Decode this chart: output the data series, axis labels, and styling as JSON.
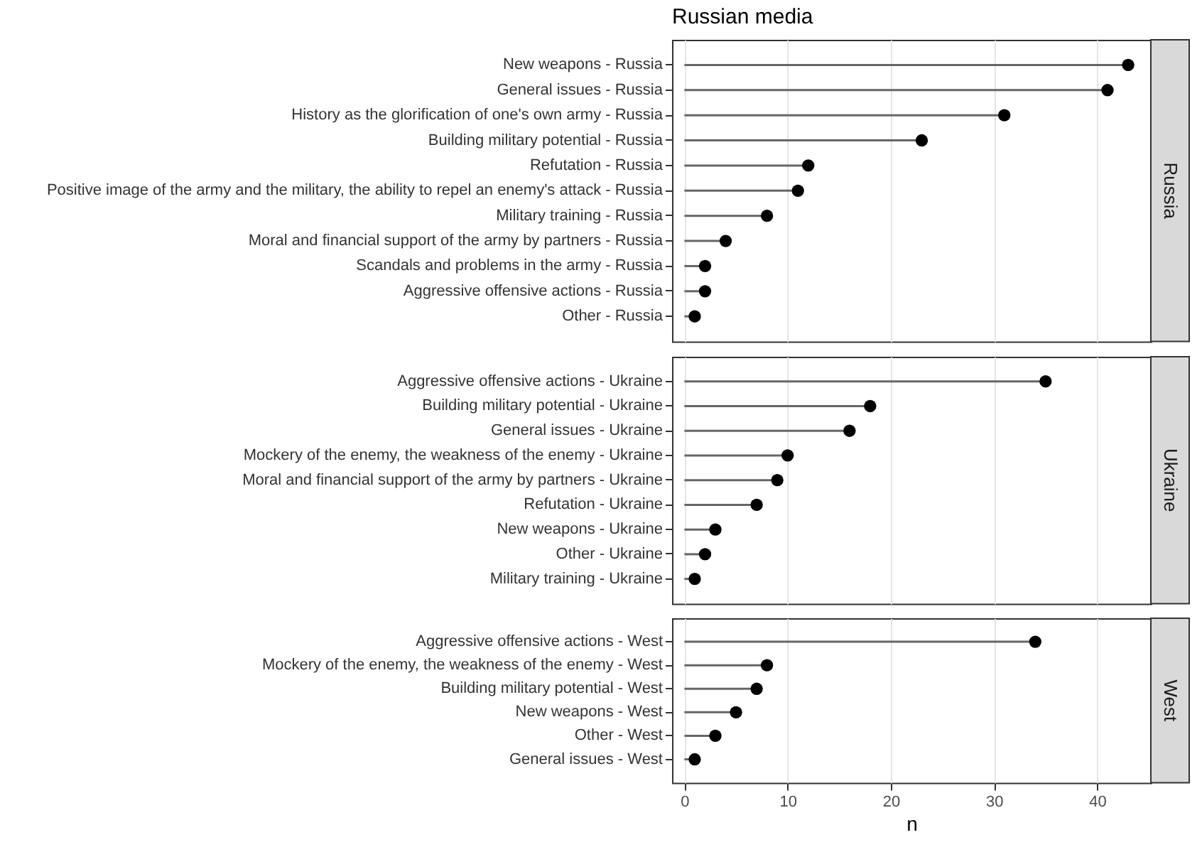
{
  "chart_data": [
    {
      "type": "lollipop",
      "title": "Russian media",
      "subtitle": "Russia",
      "categories": [
        "New weapons - Russia",
        "General issues - Russia",
        "History as the glorification of one's own army - Russia",
        "Building military potential - Russia",
        "Refutation - Russia",
        "Positive image of the army and the military, the ability to repel an enemy's attack - Russia",
        "Military training - Russia",
        "Moral and financial support of the army by partners - Russia",
        "Scandals and problems in the army - Russia",
        "Aggressive offensive actions - Russia",
        "Other - Russia"
      ],
      "series": [
        {
          "color": "#000000",
          "values": [
            43,
            41,
            31,
            23,
            12,
            11,
            8,
            4,
            2,
            2,
            1
          ]
        }
      ],
      "orientation": "horizontal",
      "xlim": [
        -1.2,
        45.2
      ],
      "xticks": [
        0,
        10,
        20,
        30,
        40
      ],
      "tick_labels": "y",
      "grid": "x",
      "marker": "circle"
    },
    {
      "type": "lollipop",
      "subtitle": "Ukraine",
      "categories": [
        "Aggressive offensive actions - Ukraine",
        "Building military potential - Ukraine",
        "General issues - Ukraine",
        "Mockery of the enemy, the weakness of the enemy - Ukraine",
        "Moral and financial support of the army by partners - Ukraine",
        "Refutation - Ukraine",
        "New weapons - Ukraine",
        "Other - Ukraine",
        "Military training - Ukraine"
      ],
      "series": [
        {
          "color": "#000000",
          "values": [
            35,
            18,
            16,
            10,
            9,
            7,
            3,
            2,
            1
          ]
        }
      ],
      "orientation": "horizontal",
      "xlim": [
        -1.2,
        45.2
      ],
      "xticks": [
        0,
        10,
        20,
        30,
        40
      ],
      "tick_labels": "y",
      "grid": "x",
      "marker": "circle"
    },
    {
      "type": "lollipop",
      "subtitle": "West",
      "xlabel": "n",
      "categories": [
        "Aggressive offensive actions - West",
        "Mockery of the enemy, the weakness of the enemy - West",
        "Building military potential - West",
        "New weapons - West",
        "Other - West",
        "General issues - West"
      ],
      "series": [
        {
          "color": "#000000",
          "values": [
            34,
            8,
            7,
            5,
            3,
            1
          ]
        }
      ],
      "orientation": "horizontal",
      "xlim": [
        -1.2,
        45.2
      ],
      "xticks": [
        0,
        10,
        20,
        30,
        40
      ],
      "grid": "x",
      "marker": "circle"
    }
  ]
}
